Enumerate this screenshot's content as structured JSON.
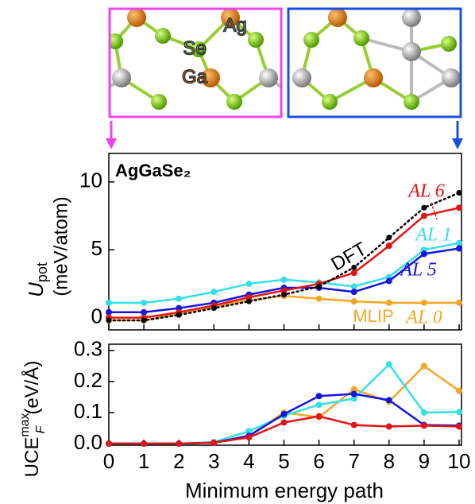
{
  "structure": {
    "labels": [
      "Ag",
      "Se",
      "Ga"
    ]
  },
  "chart_data": [
    {
      "type": "line",
      "title": "AgGaSe₂",
      "ylabel": {
        "symbol": "U",
        "subscript": "pot",
        "unit": "(meV/atom)"
      },
      "x": [
        0,
        1,
        2,
        3,
        4,
        5,
        6,
        7,
        8,
        9,
        10
      ],
      "xlim": [
        0,
        10
      ],
      "xticks": [
        0,
        1,
        2,
        3,
        4,
        5,
        6,
        7,
        8,
        9,
        10
      ],
      "ylim": [
        -0.9,
        12.1
      ],
      "yticks": [
        0,
        5,
        10
      ],
      "series": [
        {
          "name": "AL 0",
          "color": "#f5a623",
          "values": [
            -0.2,
            -0.2,
            0.3,
            0.8,
            1.3,
            1.6,
            1.4,
            1.2,
            1.1,
            1.1,
            1.1
          ]
        },
        {
          "name": "AL 1",
          "color": "#33e0e8",
          "values": [
            1.1,
            1.1,
            1.4,
            1.9,
            2.5,
            2.8,
            2.6,
            2.3,
            3.0,
            5.0,
            5.5
          ]
        },
        {
          "name": "AL 5",
          "color": "#1515e0",
          "values": [
            0.4,
            0.4,
            0.7,
            1.1,
            1.7,
            2.2,
            2.2,
            1.9,
            2.7,
            4.7,
            5.1
          ]
        },
        {
          "name": "AL 6",
          "color": "#e01515",
          "values": [
            0.0,
            0.0,
            0.4,
            0.9,
            1.5,
            2.0,
            2.5,
            3.3,
            5.3,
            7.5,
            8.1
          ]
        },
        {
          "name": "DFT",
          "color": "#000000",
          "style": "dotted",
          "values": [
            -0.2,
            -0.2,
            0.2,
            0.7,
            1.2,
            1.7,
            2.3,
            3.7,
            5.9,
            8.1,
            9.2
          ]
        }
      ],
      "annotations": [
        "MLIP"
      ]
    },
    {
      "type": "line",
      "ylabel": {
        "symbol": "UCE",
        "subscript": "F",
        "superscript": "max",
        "unit": "(eV/Å)"
      },
      "xlabel": "Minimum energy path",
      "x": [
        0,
        1,
        2,
        3,
        4,
        5,
        6,
        7,
        8,
        9,
        10
      ],
      "xlim": [
        0,
        10
      ],
      "xticks": [
        0,
        1,
        2,
        3,
        4,
        5,
        6,
        7,
        8,
        9,
        10
      ],
      "ylim": [
        -0.005,
        0.32
      ],
      "yticks": [
        {
          "value": 0,
          "label": "0.0"
        },
        0.1,
        0.2,
        0.3
      ],
      "series": [
        {
          "color": "#f5a623",
          "values": [
            0,
            0,
            0,
            0.003,
            0.025,
            0.1,
            0.085,
            0.175,
            0.135,
            0.25,
            0.17
          ]
        },
        {
          "color": "#33e0e8",
          "values": [
            0,
            0,
            0,
            0.005,
            0.04,
            0.09,
            0.125,
            0.145,
            0.255,
            0.1,
            0.102
          ]
        },
        {
          "color": "#1515e0",
          "values": [
            0,
            0,
            0,
            0.003,
            0.025,
            0.095,
            0.153,
            0.16,
            0.14,
            0.06,
            0.058
          ]
        },
        {
          "color": "#e01515",
          "values": [
            0,
            0,
            0,
            0.003,
            0.02,
            0.068,
            0.088,
            0.06,
            0.055,
            0.058,
            0.055
          ]
        }
      ]
    }
  ]
}
